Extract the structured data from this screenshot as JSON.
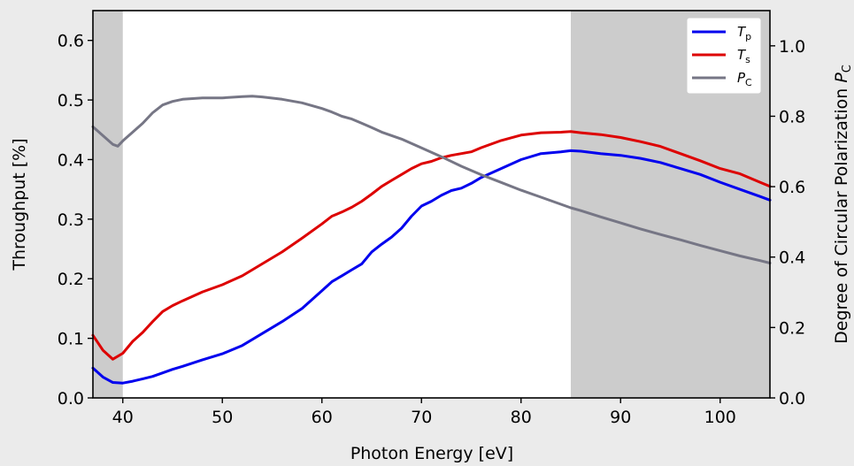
{
  "chart_data": {
    "type": "line",
    "xlabel": "Photon Energy [eV]",
    "ylabel": "Throughput [%]",
    "y2label": "Degree of Circular Polarization P_C",
    "y2label_main": "Degree of Circular Polarization ",
    "y2label_var": "P",
    "y2label_sub": "C",
    "xlim": [
      37,
      105
    ],
    "ylim": [
      0.0,
      0.65
    ],
    "y2lim": [
      0.0,
      1.1
    ],
    "x_ticks": [
      40,
      50,
      60,
      70,
      80,
      90,
      100
    ],
    "x_tick_labels": [
      "40",
      "50",
      "60",
      "70",
      "80",
      "90",
      "100"
    ],
    "y_ticks": [
      0.0,
      0.1,
      0.2,
      0.3,
      0.4,
      0.5,
      0.6
    ],
    "y_tick_labels": [
      "0.0",
      "0.1",
      "0.2",
      "0.3",
      "0.4",
      "0.5",
      "0.6"
    ],
    "y2_ticks": [
      0.0,
      0.2,
      0.4,
      0.6,
      0.8,
      1.0
    ],
    "y2_tick_labels": [
      "0.0",
      "0.2",
      "0.4",
      "0.6",
      "0.8",
      "1.0"
    ],
    "shaded_regions": [
      [
        37,
        40
      ],
      [
        85,
        105
      ]
    ],
    "grid": false,
    "legend_position": "top-right",
    "series": [
      {
        "name": "T_p",
        "label_main": "T",
        "label_sub": "p",
        "axis": "left",
        "color": "#0000ee",
        "x": [
          37,
          38,
          39,
          40,
          41,
          42,
          43,
          44,
          45,
          46,
          48,
          50,
          52,
          54,
          56,
          58,
          60,
          61,
          62,
          63,
          64,
          65,
          66,
          67,
          68,
          69,
          70,
          71,
          72,
          73,
          74,
          75,
          76,
          78,
          80,
          82,
          84,
          85,
          86,
          88,
          90,
          92,
          94,
          96,
          98,
          100,
          102,
          104,
          105
        ],
        "y": [
          0.05,
          0.035,
          0.026,
          0.025,
          0.028,
          0.032,
          0.036,
          0.042,
          0.048,
          0.053,
          0.064,
          0.074,
          0.088,
          0.108,
          0.128,
          0.15,
          0.18,
          0.195,
          0.205,
          0.215,
          0.225,
          0.245,
          0.258,
          0.27,
          0.285,
          0.305,
          0.322,
          0.33,
          0.34,
          0.348,
          0.352,
          0.36,
          0.37,
          0.385,
          0.4,
          0.41,
          0.413,
          0.415,
          0.414,
          0.41,
          0.407,
          0.402,
          0.395,
          0.385,
          0.375,
          0.362,
          0.35,
          0.338,
          0.332
        ]
      },
      {
        "name": "T_s",
        "label_main": "T",
        "label_sub": "s",
        "axis": "left",
        "color": "#dd0000",
        "x": [
          37,
          38,
          39,
          40,
          41,
          42,
          43,
          44,
          45,
          46,
          48,
          50,
          52,
          54,
          56,
          58,
          60,
          61,
          62,
          63,
          64,
          65,
          66,
          67,
          68,
          69,
          70,
          71,
          72,
          73,
          74,
          75,
          76,
          78,
          80,
          82,
          84,
          85,
          86,
          88,
          90,
          92,
          94,
          96,
          98,
          100,
          102,
          104,
          105
        ],
        "y": [
          0.105,
          0.08,
          0.065,
          0.075,
          0.095,
          0.11,
          0.128,
          0.145,
          0.155,
          0.163,
          0.178,
          0.19,
          0.205,
          0.225,
          0.245,
          0.268,
          0.292,
          0.305,
          0.312,
          0.32,
          0.33,
          0.342,
          0.355,
          0.365,
          0.375,
          0.385,
          0.393,
          0.397,
          0.403,
          0.407,
          0.41,
          0.413,
          0.42,
          0.432,
          0.441,
          0.445,
          0.446,
          0.447,
          0.445,
          0.442,
          0.437,
          0.43,
          0.422,
          0.41,
          0.398,
          0.385,
          0.376,
          0.362,
          0.355
        ]
      },
      {
        "name": "P_C",
        "label_main": "P",
        "label_sub": "C",
        "axis": "right",
        "color": "#767685",
        "x": [
          37,
          38,
          39,
          39.5,
          40,
          41,
          42,
          43,
          44,
          45,
          46,
          48,
          50,
          52,
          53,
          54,
          56,
          58,
          60,
          61,
          62,
          63,
          64,
          65,
          66,
          68,
          70,
          72,
          74,
          76,
          78,
          80,
          82,
          84,
          85,
          86,
          88,
          90,
          92,
          94,
          96,
          98,
          100,
          102,
          104,
          105
        ],
        "y": [
          0.77,
          0.745,
          0.72,
          0.715,
          0.73,
          0.755,
          0.78,
          0.81,
          0.832,
          0.842,
          0.848,
          0.852,
          0.852,
          0.856,
          0.857,
          0.855,
          0.848,
          0.838,
          0.822,
          0.812,
          0.8,
          0.792,
          0.78,
          0.768,
          0.755,
          0.735,
          0.71,
          0.685,
          0.658,
          0.634,
          0.612,
          0.59,
          0.57,
          0.55,
          0.54,
          0.532,
          0.514,
          0.497,
          0.48,
          0.464,
          0.449,
          0.433,
          0.418,
          0.403,
          0.39,
          0.383
        ]
      }
    ]
  }
}
